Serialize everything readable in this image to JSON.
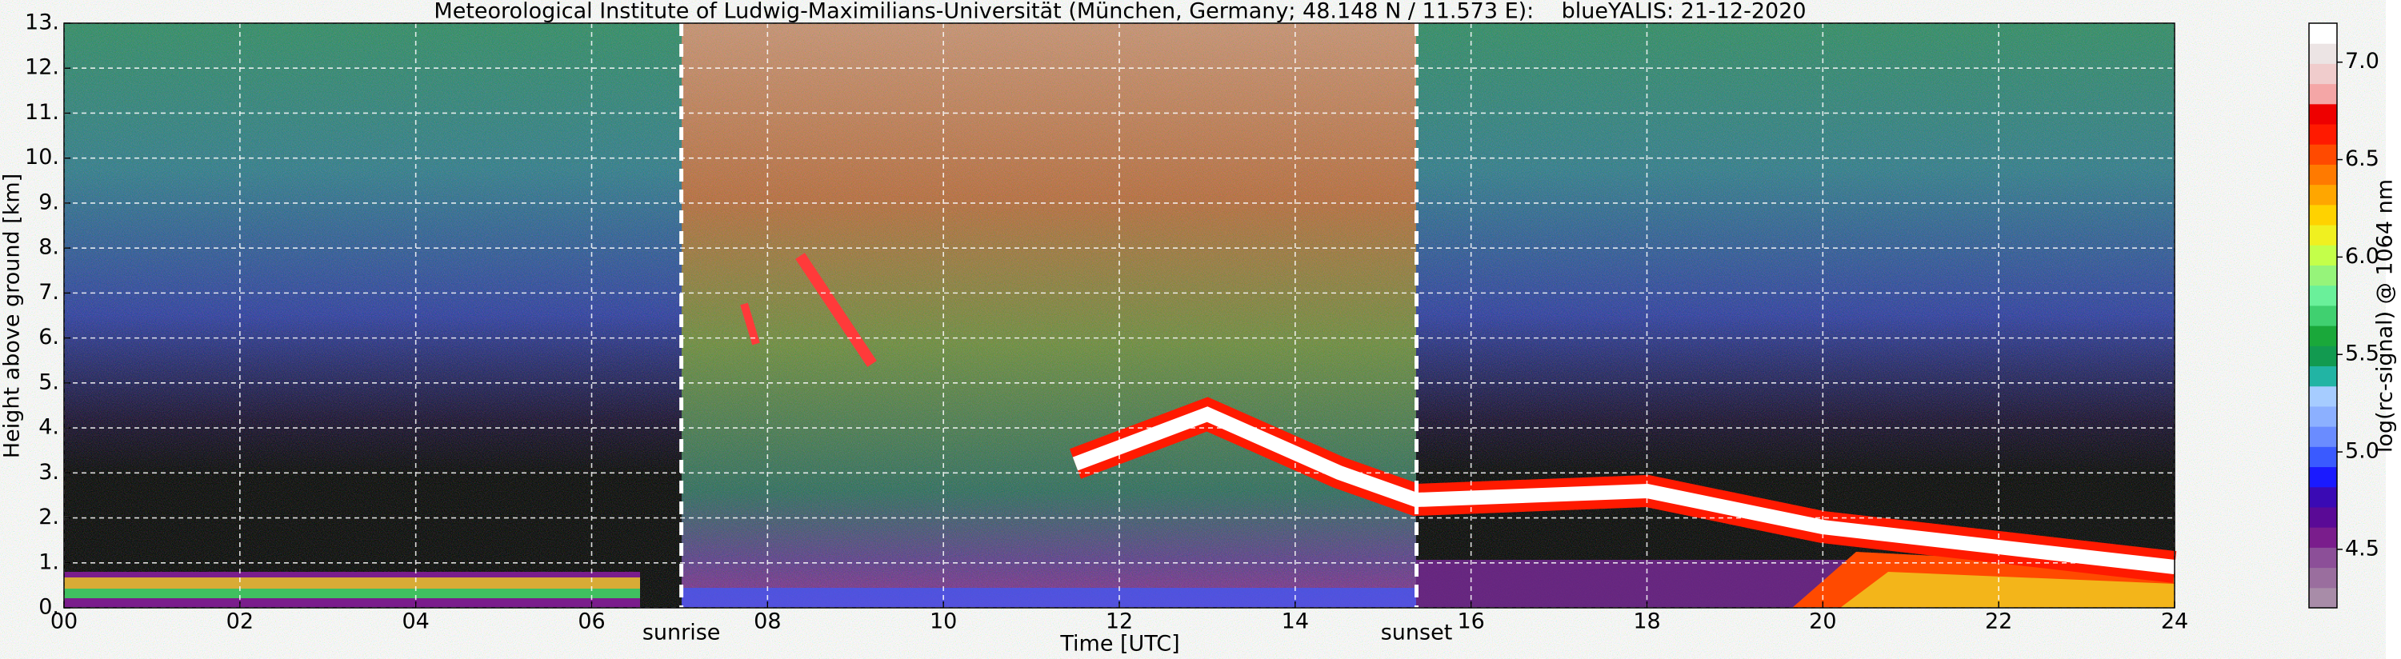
{
  "chart_data": {
    "type": "heatmap",
    "title": "Meteorological Institute of Ludwig-Maximilians-Universität (München, Germany; 48.148 N / 11.573 E):    blueYALIS: 21-12-2020",
    "x_label": "Time [UTC]",
    "y_label": "Height above ground [km]",
    "xlim": [
      0,
      24
    ],
    "ylim": [
      0,
      13
    ],
    "xticks": [
      {
        "value": 0,
        "label": "00"
      },
      {
        "value": 2,
        "label": "02"
      },
      {
        "value": 4,
        "label": "04"
      },
      {
        "value": 6,
        "label": "06"
      },
      {
        "value": 8,
        "label": "08"
      },
      10,
      12,
      14,
      16,
      18,
      20,
      22,
      24
    ],
    "yticks": [
      {
        "value": 0,
        "label": "0."
      },
      {
        "value": 1,
        "label": "1."
      },
      {
        "value": 2,
        "label": "2."
      },
      {
        "value": 3,
        "label": "3."
      },
      {
        "value": 4,
        "label": "4."
      },
      {
        "value": 5,
        "label": "5."
      },
      {
        "value": 6,
        "label": "6."
      },
      {
        "value": 7,
        "label": "7."
      },
      {
        "value": 8,
        "label": "8."
      },
      {
        "value": 9,
        "label": "9."
      },
      {
        "value": 10,
        "label": "10."
      },
      {
        "value": 11,
        "label": "11."
      },
      {
        "value": 12,
        "label": "12."
      },
      {
        "value": 13,
        "label": "13."
      }
    ],
    "grid": true,
    "annotations": [
      {
        "text": "sunrise",
        "x": 7.02
      },
      {
        "text": "sunset",
        "x": 15.38
      }
    ],
    "colorbar": {
      "label": "log(rc-signal) @ 1064 nm",
      "lim": [
        4.2,
        7.2
      ],
      "ticks": [
        {
          "value": 4.5,
          "label": "4.5"
        },
        {
          "value": 5,
          "label": "5.0"
        },
        {
          "value": 5.5,
          "label": "5.5"
        },
        {
          "value": 6,
          "label": "6.0"
        },
        {
          "value": 6.5,
          "label": "6.5"
        },
        {
          "value": 7,
          "label": "7.0"
        }
      ],
      "colors": [
        "#a88ca8",
        "#9a6e9e",
        "#8c4f98",
        "#7a1d8c",
        "#5a0a96",
        "#3a0ab4",
        "#1a1aff",
        "#3a5aff",
        "#6a8cff",
        "#8cb0ff",
        "#a6ccff",
        "#22b4a4",
        "#129a50",
        "#1aa83a",
        "#40d070",
        "#6af09a",
        "#96f47a",
        "#c4ff4a",
        "#f0f020",
        "#ffd200",
        "#ffa600",
        "#ff7a00",
        "#ff4a00",
        "#ff1a00",
        "#ee0000",
        "#f4a6a6",
        "#f0cccc",
        "#ece4e4",
        "#ffffff"
      ]
    }
  }
}
